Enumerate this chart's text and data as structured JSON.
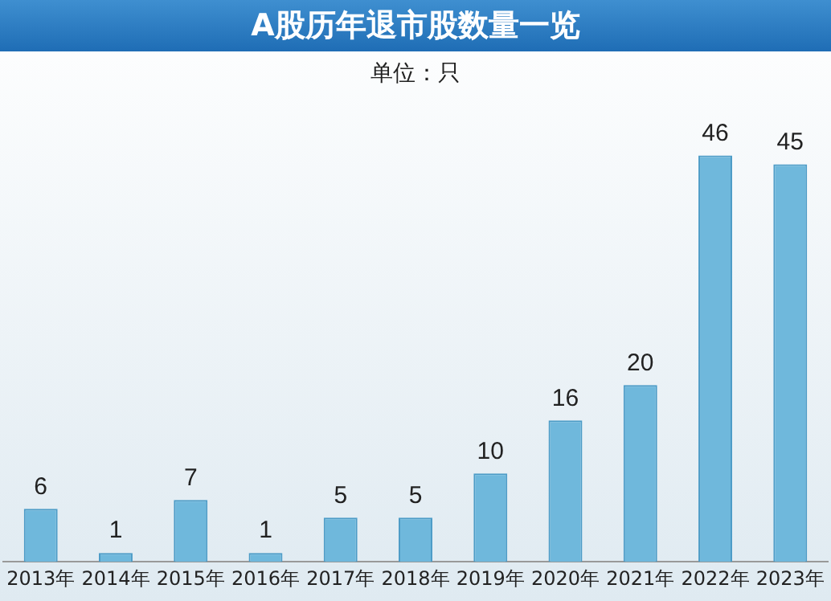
{
  "chart_data": {
    "type": "bar",
    "title": "A股历年退市股数量一览",
    "subtitle": "单位：只",
    "categories": [
      "2013年",
      "2014年",
      "2015年",
      "2016年",
      "2017年",
      "2018年",
      "2019年",
      "2020年",
      "2021年",
      "2022年",
      "2023年"
    ],
    "values": [
      6,
      1,
      7,
      1,
      5,
      5,
      10,
      16,
      20,
      46,
      45
    ],
    "color": "#6fb8dc",
    "data_labels": true,
    "tick_labels": "x",
    "grid": false,
    "legend": false
  }
}
